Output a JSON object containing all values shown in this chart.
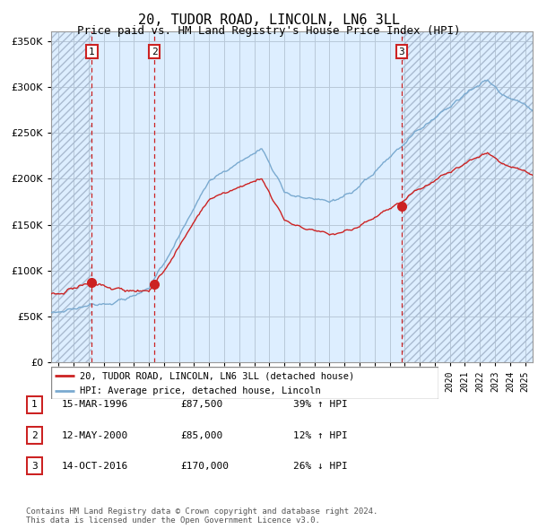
{
  "title": "20, TUDOR ROAD, LINCOLN, LN6 3LL",
  "subtitle": "Price paid vs. HM Land Registry's House Price Index (HPI)",
  "hpi_color": "#7aaad0",
  "price_color": "#cc2222",
  "sale_dot_color": "#cc2222",
  "vline_color": "#cc2222",
  "bg_color": "#ddeeff",
  "hatch_edgecolor": "#aabbd0",
  "grid_color": "#b8c8d8",
  "ylim": [
    0,
    360000
  ],
  "yticks": [
    0,
    50000,
    100000,
    150000,
    200000,
    250000,
    300000,
    350000
  ],
  "ytick_labels": [
    "£0",
    "£50K",
    "£100K",
    "£150K",
    "£200K",
    "£250K",
    "£300K",
    "£350K"
  ],
  "xlim_start": 1993.5,
  "xlim_end": 2025.5,
  "xtick_start": 1994,
  "xtick_end": 2025,
  "sale1_year": 1996.21,
  "sale1_price": 87500,
  "sale2_year": 2000.37,
  "sale2_price": 85000,
  "sale3_year": 2016.79,
  "sale3_price": 170000,
  "legend_line1": "20, TUDOR ROAD, LINCOLN, LN6 3LL (detached house)",
  "legend_line2": "HPI: Average price, detached house, Lincoln",
  "table": [
    {
      "num": "1",
      "date": "15-MAR-1996",
      "price": "£87,500",
      "change": "39% ↑ HPI"
    },
    {
      "num": "2",
      "date": "12-MAY-2000",
      "price": "£85,000",
      "change": "12% ↑ HPI"
    },
    {
      "num": "3",
      "date": "14-OCT-2016",
      "price": "£170,000",
      "change": "26% ↓ HPI"
    }
  ],
  "footer": "Contains HM Land Registry data © Crown copyright and database right 2024.\nThis data is licensed under the Open Government Licence v3.0."
}
